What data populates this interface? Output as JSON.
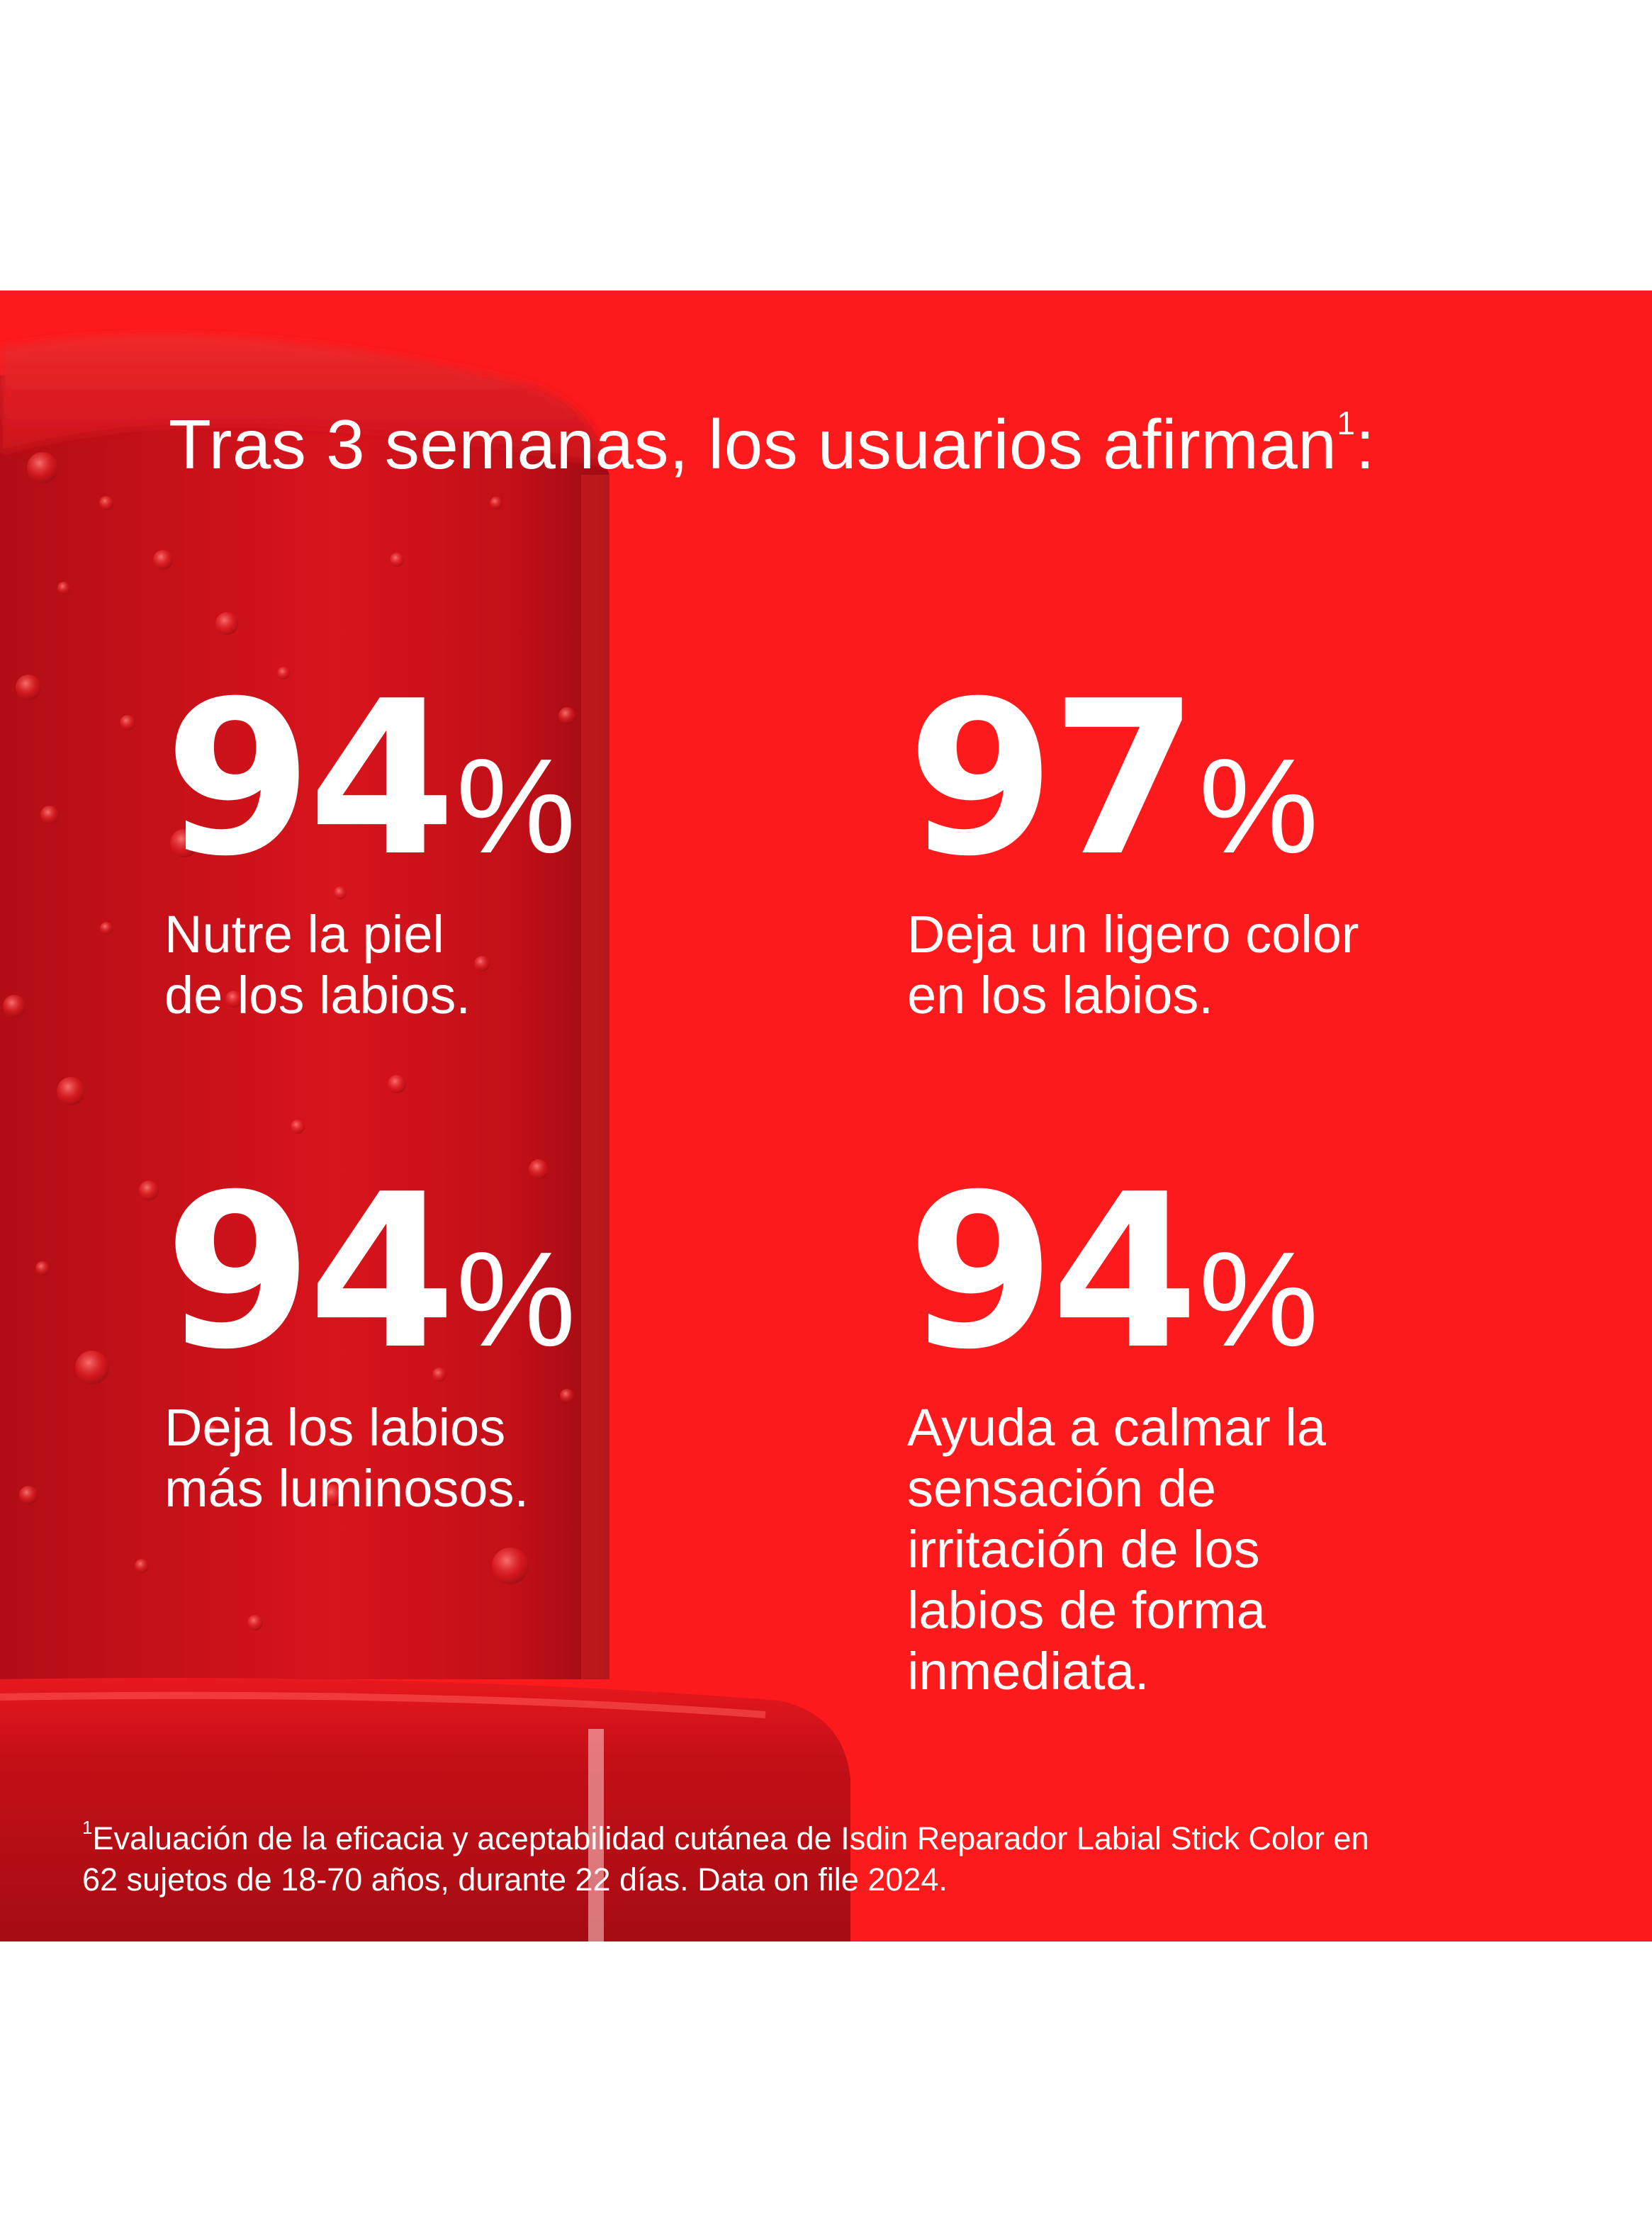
{
  "headline": {
    "text": "Tras 3 semanas, los usuarios afirman",
    "footnote_ref": "1",
    "suffix": ":"
  },
  "stats": [
    {
      "number": "94",
      "percent": "%",
      "lines": [
        "Nutre la piel",
        "de los labios."
      ]
    },
    {
      "number": "97",
      "percent": "%",
      "lines": [
        "Deja un ligero color",
        "en los labios."
      ]
    },
    {
      "number": "94",
      "percent": "%",
      "lines": [
        "Deja los labios",
        "más luminosos."
      ]
    },
    {
      "number": "94",
      "percent": "%",
      "lines": [
        "Ayuda a calmar la",
        "sensación de",
        "irritación de los",
        "labios de forma",
        "inmediata."
      ]
    }
  ],
  "footnote": {
    "marker": "1",
    "line1": "Evaluación de la eficacia y aceptabilidad cutánea de Isdin Reparador Labial Stick Color en",
    "line2": "62 sujetos de 18-70 años, durante 22 días. Data on file 2024."
  },
  "colors": {
    "background": "#ffffff",
    "banner": "#fd1a1c",
    "product": "#c8101a",
    "text": "#ffffff"
  }
}
